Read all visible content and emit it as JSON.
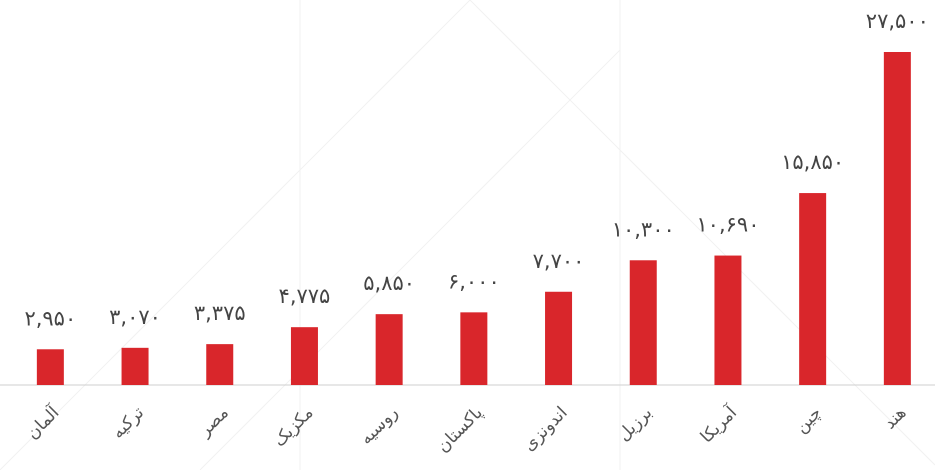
{
  "chart_data": {
    "type": "bar",
    "categories": [
      "آلمان",
      "ترکیه",
      "مصر",
      "مکزیک",
      "روسیه",
      "پاکستان",
      "اندونزی",
      "برزیل",
      "آمریکا",
      "چین",
      "هند"
    ],
    "values": [
      2950,
      3070,
      3375,
      4775,
      5850,
      6000,
      7700,
      10300,
      10690,
      15850,
      27500
    ],
    "value_labels": [
      "۲,۹۵۰",
      "۳,۰۷۰",
      "۳,۳۷۵",
      "۴,۷۷۵",
      "۵,۸۵۰",
      "۶,۰۰۰",
      "۷,۷۰۰",
      "۱۰,۳۰۰",
      "۱۰,۶۹۰",
      "۱۵,۸۵۰",
      "۲۷,۵۰۰"
    ],
    "color": "#d9262b"
  }
}
